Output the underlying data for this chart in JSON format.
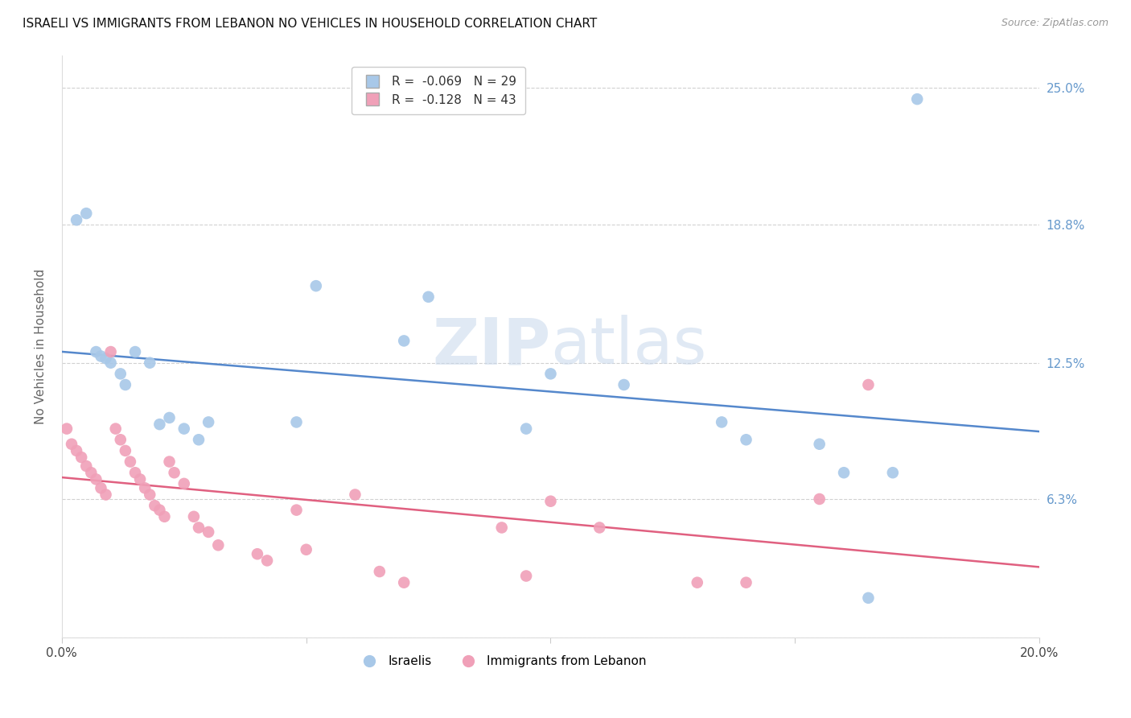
{
  "title": "ISRAELI VS IMMIGRANTS FROM LEBANON NO VEHICLES IN HOUSEHOLD CORRELATION CHART",
  "source": "Source: ZipAtlas.com",
  "ylabel": "No Vehicles in Household",
  "xlim": [
    0.0,
    0.2
  ],
  "ylim": [
    0.0,
    0.265
  ],
  "ytick_values": [
    0.0,
    0.063,
    0.125,
    0.188,
    0.25
  ],
  "ytick_right_labels": [
    "",
    "6.3%",
    "12.5%",
    "18.8%",
    "25.0%"
  ],
  "xtick_values": [
    0.0,
    0.05,
    0.1,
    0.15,
    0.2
  ],
  "legend_label1": "Israelis",
  "legend_label2": "Immigrants from Lebanon",
  "r1": -0.069,
  "n1": 29,
  "r2": -0.128,
  "n2": 43,
  "color_blue": "#A8C8E8",
  "color_pink": "#F0A0B8",
  "color_blue_line": "#5588CC",
  "color_pink_line": "#E06080",
  "color_right_axis": "#6699CC",
  "israelis_x": [
    0.003,
    0.005,
    0.007,
    0.008,
    0.009,
    0.01,
    0.012,
    0.013,
    0.015,
    0.018,
    0.02,
    0.022,
    0.025,
    0.028,
    0.03,
    0.048,
    0.052,
    0.07,
    0.075,
    0.095,
    0.1,
    0.115,
    0.135,
    0.14,
    0.155,
    0.16,
    0.165,
    0.17,
    0.175
  ],
  "israelis_y": [
    0.19,
    0.193,
    0.13,
    0.128,
    0.127,
    0.125,
    0.12,
    0.115,
    0.13,
    0.125,
    0.097,
    0.1,
    0.095,
    0.09,
    0.098,
    0.098,
    0.16,
    0.135,
    0.155,
    0.095,
    0.12,
    0.115,
    0.098,
    0.09,
    0.088,
    0.075,
    0.018,
    0.075,
    0.245
  ],
  "lebanon_x": [
    0.001,
    0.002,
    0.003,
    0.004,
    0.005,
    0.006,
    0.007,
    0.008,
    0.009,
    0.01,
    0.011,
    0.012,
    0.013,
    0.014,
    0.015,
    0.016,
    0.017,
    0.018,
    0.019,
    0.02,
    0.021,
    0.022,
    0.023,
    0.025,
    0.027,
    0.028,
    0.03,
    0.032,
    0.04,
    0.042,
    0.048,
    0.05,
    0.06,
    0.065,
    0.07,
    0.09,
    0.095,
    0.1,
    0.11,
    0.13,
    0.14,
    0.155,
    0.165
  ],
  "lebanon_y": [
    0.095,
    0.088,
    0.085,
    0.082,
    0.078,
    0.075,
    0.072,
    0.068,
    0.065,
    0.13,
    0.095,
    0.09,
    0.085,
    0.08,
    0.075,
    0.072,
    0.068,
    0.065,
    0.06,
    0.058,
    0.055,
    0.08,
    0.075,
    0.07,
    0.055,
    0.05,
    0.048,
    0.042,
    0.038,
    0.035,
    0.058,
    0.04,
    0.065,
    0.03,
    0.025,
    0.05,
    0.028,
    0.062,
    0.05,
    0.025,
    0.025,
    0.063,
    0.115
  ],
  "watermark_zip": "ZIP",
  "watermark_atlas": "atlas",
  "background_color": "#FFFFFF",
  "grid_color": "#CCCCCC"
}
